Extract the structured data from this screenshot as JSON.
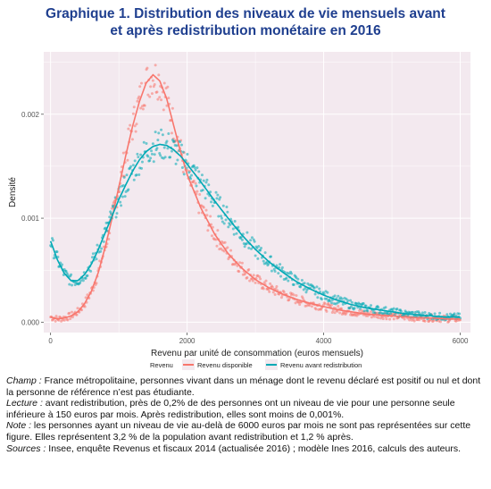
{
  "title_line1": "Graphique  1. Distribution des niveaux de vie mensuels avant",
  "title_line2": "et après redistribution monétaire en 2016",
  "notes": {
    "champ_label": "Champ :",
    "champ_text": " France métropolitaine, personnes vivant dans un ménage dont le revenu déclaré est positif ou nul et dont la personne de référence n’est pas étudiante.",
    "lecture_label": "Lecture :",
    "lecture_text": " avant redistribution, près de 0,2% de des personnes ont un niveau de vie pour une personne seule inférieure à 150 euros par mois. Après redistribution, elles sont moins de 0,001%.",
    "note_label": "Note :",
    "note_text": " les personnes ayant un niveau de vie au-delà de 6000 euros par mois ne sont pas représentées sur cette figure. Elles représentent 3,2 % de la population avant redistribution et 1,2 % après.",
    "sources_label": "Sources :",
    "sources_text": " Insee, enquête Revenus et fiscaux 2014 (actualisée 2016) ; modèle Ines 2016, calculs des auteurs."
  },
  "chart_data": {
    "type": "scatter",
    "xlabel": "Revenu par unité de consommation (euros mensuels)",
    "ylabel": "Densité",
    "xlim": [
      -100,
      6150
    ],
    "ylim": [
      -0.0001,
      0.0026
    ],
    "x_ticks": [
      0,
      2000,
      4000,
      6000
    ],
    "x_tick_labels": [
      "0",
      "2000",
      "4000",
      "6000"
    ],
    "y_ticks": [
      0,
      0.001,
      0.002
    ],
    "y_tick_labels": [
      "0.000",
      "0.001",
      "0.002"
    ],
    "grid": true,
    "background": "#f3e9ef",
    "legend_title": "Revenu",
    "legend_position": "bottom",
    "series": [
      {
        "name": "Revenu disponible",
        "color": "#f8766d",
        "points": [
          [
            0,
            5e-05
          ],
          [
            100,
            3e-05
          ],
          [
            200,
            4e-05
          ],
          [
            300,
            6e-05
          ],
          [
            400,
            0.0001
          ],
          [
            500,
            0.00018
          ],
          [
            600,
            0.0003
          ],
          [
            700,
            0.00048
          ],
          [
            800,
            0.00072
          ],
          [
            900,
            0.001
          ],
          [
            1000,
            0.0013
          ],
          [
            1100,
            0.0016
          ],
          [
            1200,
            0.00188
          ],
          [
            1300,
            0.00212
          ],
          [
            1400,
            0.0023
          ],
          [
            1500,
            0.00238
          ],
          [
            1600,
            0.00232
          ],
          [
            1700,
            0.00215
          ],
          [
            1800,
            0.0019
          ],
          [
            1900,
            0.00165
          ],
          [
            2000,
            0.00142
          ],
          [
            2200,
            0.0011
          ],
          [
            2400,
            0.00085
          ],
          [
            2600,
            0.00066
          ],
          [
            2800,
            0.00052
          ],
          [
            3000,
            0.00041
          ],
          [
            3200,
            0.00033
          ],
          [
            3400,
            0.00027
          ],
          [
            3600,
            0.00022
          ],
          [
            3800,
            0.00018
          ],
          [
            4000,
            0.00015
          ],
          [
            4200,
            0.00012
          ],
          [
            4400,
            0.0001
          ],
          [
            4600,
            8e-05
          ],
          [
            4800,
            7e-05
          ],
          [
            5000,
            6e-05
          ],
          [
            5200,
            5e-05
          ],
          [
            5400,
            4e-05
          ],
          [
            5600,
            4e-05
          ],
          [
            5800,
            3e-05
          ],
          [
            6000,
            3e-05
          ]
        ]
      },
      {
        "name": "Revenu avant redistribution",
        "color": "#00a9b5",
        "points": [
          [
            0,
            0.00078
          ],
          [
            100,
            0.0006
          ],
          [
            200,
            0.00047
          ],
          [
            300,
            0.0004
          ],
          [
            400,
            0.0004
          ],
          [
            500,
            0.00046
          ],
          [
            600,
            0.00056
          ],
          [
            700,
            0.0007
          ],
          [
            800,
            0.00086
          ],
          [
            900,
            0.00102
          ],
          [
            1000,
            0.00118
          ],
          [
            1100,
            0.00132
          ],
          [
            1200,
            0.00145
          ],
          [
            1300,
            0.00156
          ],
          [
            1400,
            0.00164
          ],
          [
            1500,
            0.00169
          ],
          [
            1600,
            0.00171
          ],
          [
            1700,
            0.0017
          ],
          [
            1800,
            0.00166
          ],
          [
            1900,
            0.0016
          ],
          [
            2000,
            0.00152
          ],
          [
            2200,
            0.00135
          ],
          [
            2400,
            0.00117
          ],
          [
            2600,
            0.001
          ],
          [
            2800,
            0.00084
          ],
          [
            3000,
            0.0007
          ],
          [
            3200,
            0.00058
          ],
          [
            3400,
            0.00048
          ],
          [
            3600,
            0.00039
          ],
          [
            3800,
            0.00032
          ],
          [
            4000,
            0.00026
          ],
          [
            4200,
            0.00021
          ],
          [
            4400,
            0.00017
          ],
          [
            4600,
            0.00014
          ],
          [
            4800,
            0.00012
          ],
          [
            5000,
            0.0001
          ],
          [
            5200,
            8e-05
          ],
          [
            5400,
            7e-05
          ],
          [
            5600,
            6e-05
          ],
          [
            5800,
            5e-05
          ],
          [
            6000,
            5e-05
          ]
        ]
      }
    ]
  }
}
